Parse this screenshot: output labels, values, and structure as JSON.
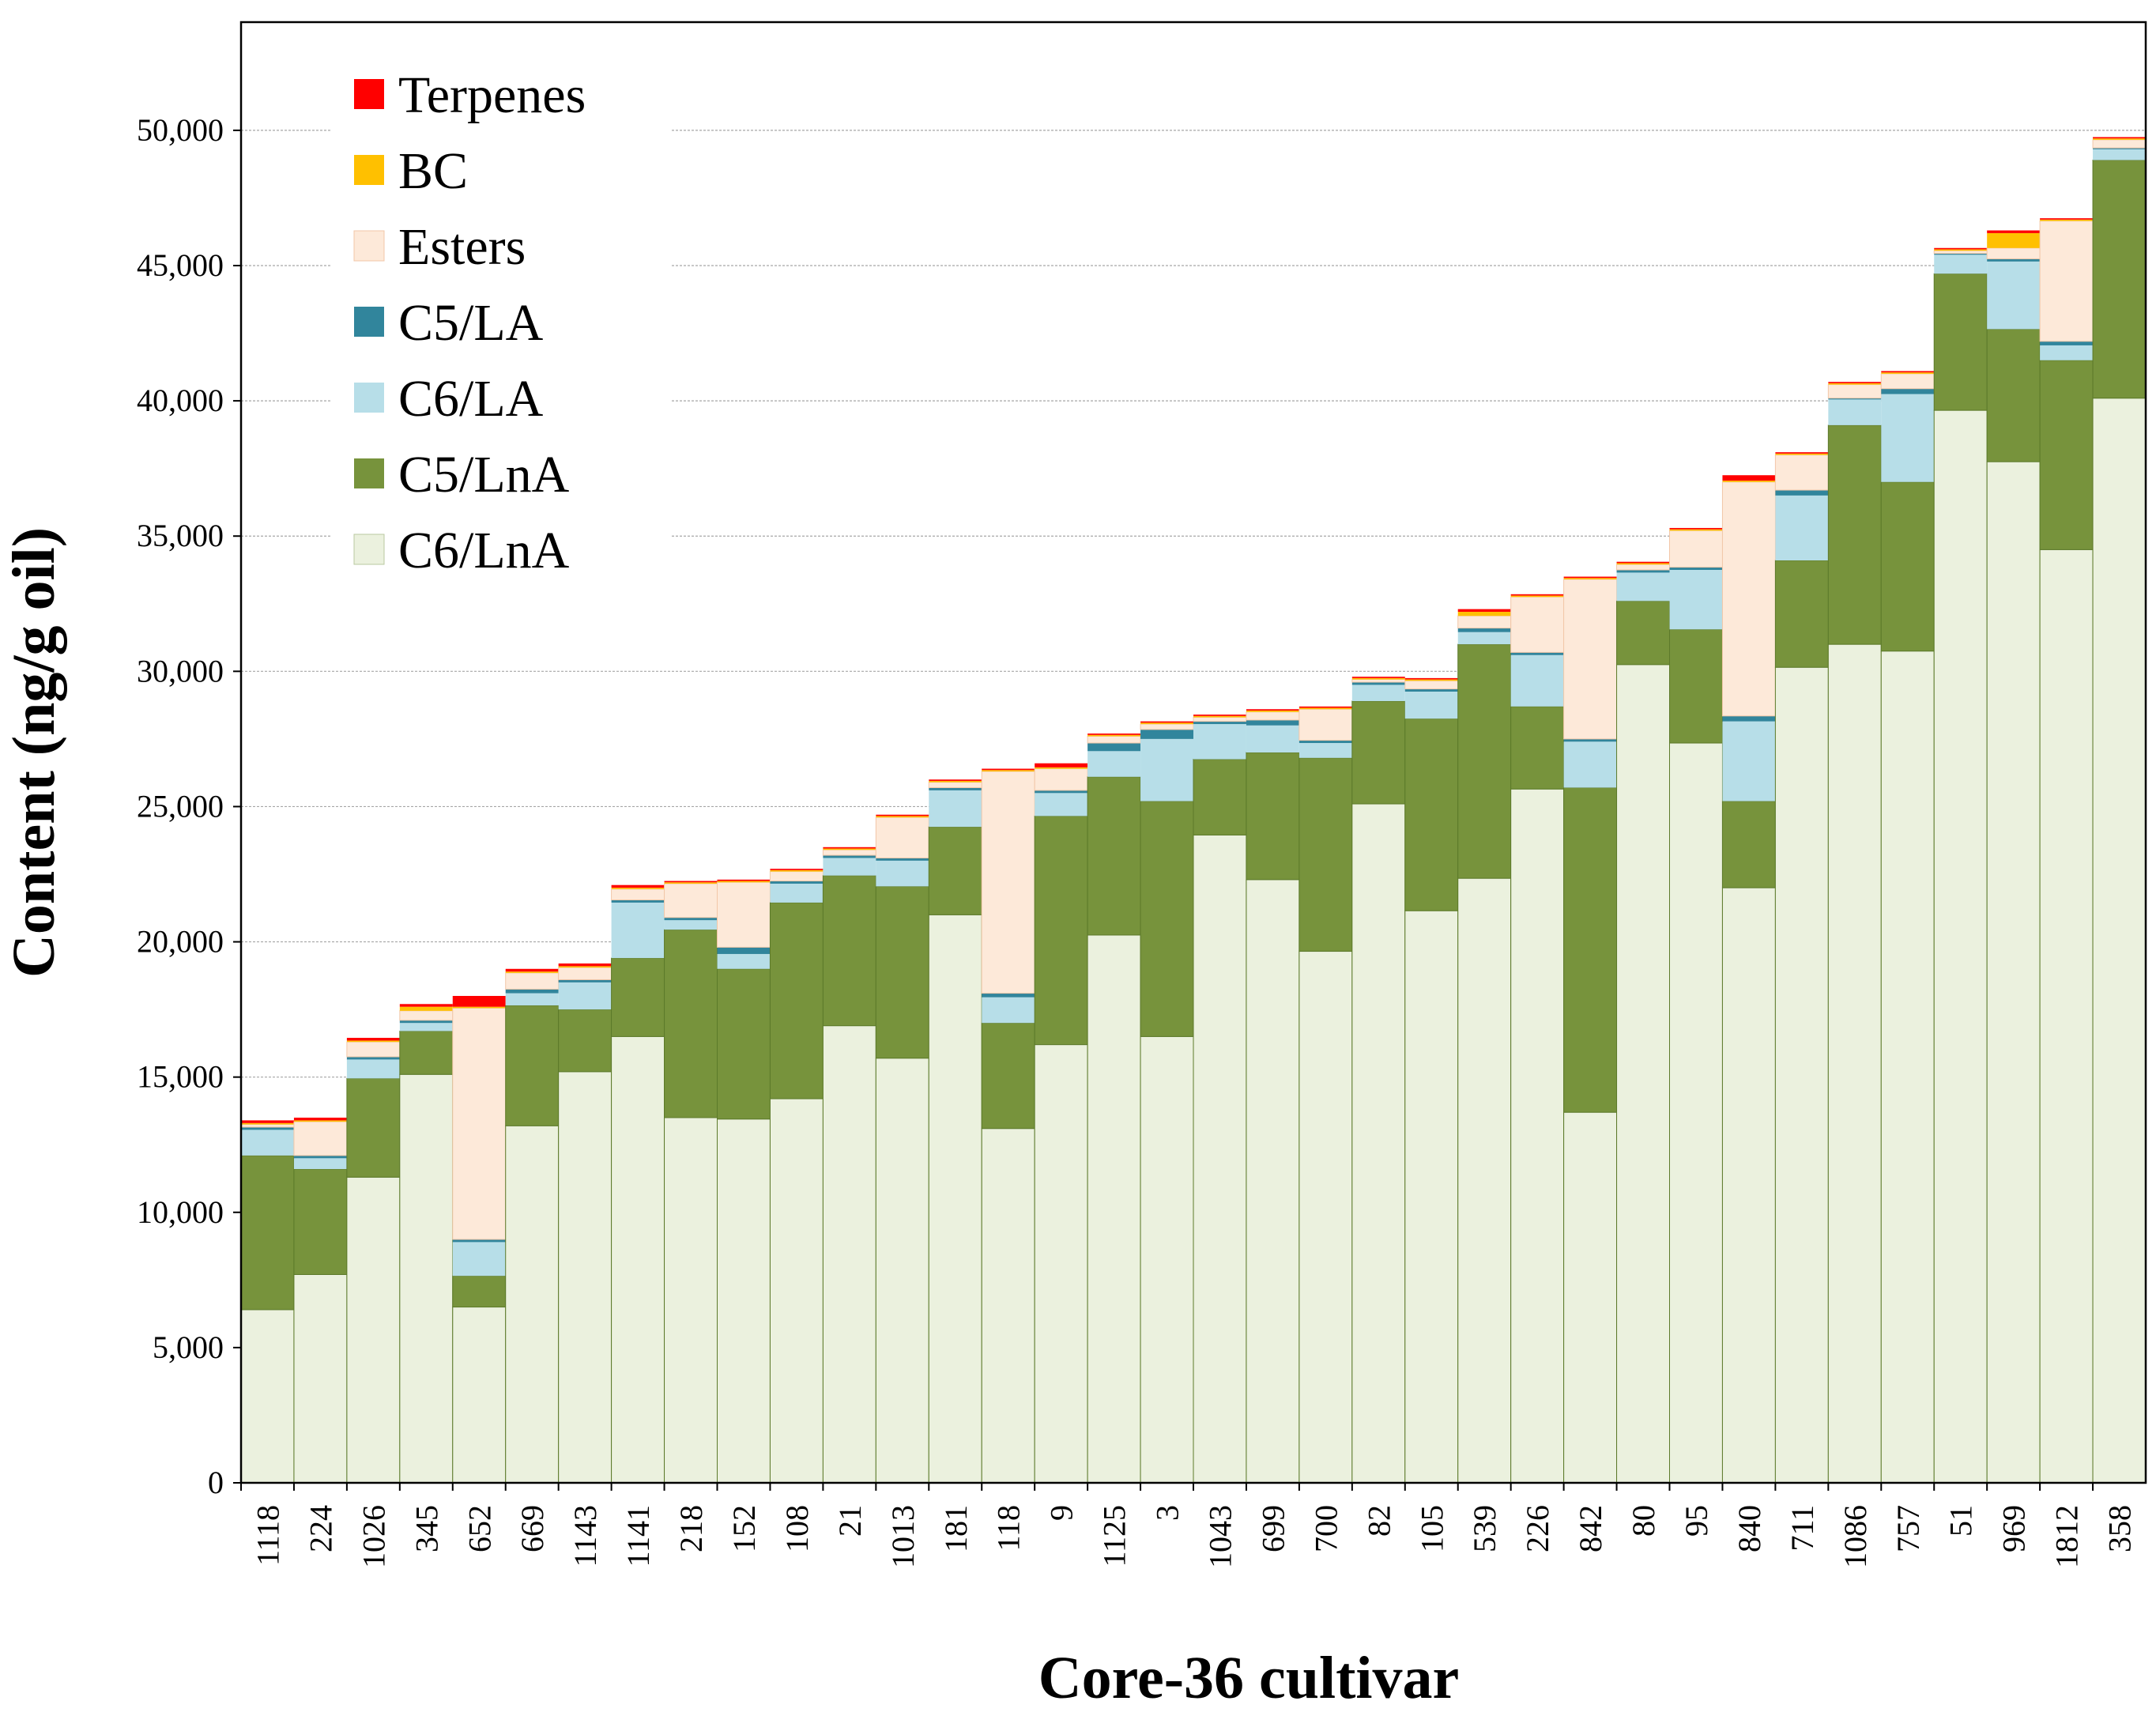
{
  "chart_data": {
    "type": "bar",
    "stacked": true,
    "title": "",
    "xlabel": "Core-36 cultivar",
    "ylabel": "Content (ng/g oil)",
    "ylim": [
      0,
      54000
    ],
    "yticks": [
      0,
      5000,
      10000,
      15000,
      20000,
      25000,
      30000,
      35000,
      40000,
      45000,
      50000
    ],
    "ytick_labels": [
      "0",
      "5,000",
      "10,000",
      "15,000",
      "20,000",
      "25,000",
      "30,000",
      "35,000",
      "40,000",
      "45,000",
      "50,000"
    ],
    "grid": true,
    "legend_position": "top-left",
    "categories": [
      "1118",
      "224",
      "1026",
      "345",
      "652",
      "669",
      "1143",
      "1141",
      "218",
      "152",
      "108",
      "21",
      "1013",
      "181",
      "118",
      "9",
      "1125",
      "3",
      "1043",
      "699",
      "700",
      "82",
      "105",
      "539",
      "226",
      "842",
      "80",
      "95",
      "840",
      "711",
      "1086",
      "757",
      "51",
      "969",
      "1812",
      "358"
    ],
    "series": [
      {
        "name": "C6/LnA",
        "color": "#ebf1de",
        "values": [
          6400,
          7700,
          11300,
          15100,
          6500,
          13200,
          15200,
          16500,
          13500,
          13450,
          14200,
          16900,
          15700,
          21000,
          13100,
          16200,
          20250,
          16500,
          23950,
          22300,
          19650,
          25100,
          21150,
          22350,
          25650,
          13700,
          30250,
          27350,
          22000,
          30150,
          31000,
          30750,
          39650,
          37750,
          34500,
          40100
        ]
      },
      {
        "name": "C5/LnA",
        "color": "#77933c",
        "values": [
          5700,
          3900,
          3650,
          1600,
          1150,
          4450,
          2300,
          2900,
          6950,
          5550,
          7250,
          5550,
          6350,
          3250,
          3900,
          8450,
          5850,
          8700,
          2800,
          4700,
          7150,
          3800,
          7100,
          8650,
          3050,
          12000,
          2350,
          4200,
          3200,
          3950,
          8100,
          6250,
          5050,
          4900,
          7000,
          8800
        ]
      },
      {
        "name": "C6/LA",
        "color": "#b7dee8",
        "values": [
          950,
          400,
          700,
          300,
          1250,
          450,
          1000,
          2050,
          350,
          550,
          700,
          650,
          950,
          1350,
          950,
          850,
          950,
          2300,
          1300,
          1000,
          550,
          600,
          1000,
          450,
          1900,
          1700,
          1050,
          2200,
          2950,
          2400,
          950,
          3250,
          700,
          2500,
          550,
          400
        ]
      },
      {
        "name": "C5/LA",
        "color": "#31859c",
        "values": [
          100,
          100,
          100,
          100,
          100,
          150,
          100,
          100,
          100,
          250,
          100,
          100,
          100,
          100,
          150,
          100,
          300,
          350,
          100,
          200,
          100,
          100,
          100,
          150,
          100,
          100,
          100,
          100,
          200,
          200,
          50,
          200,
          50,
          100,
          150,
          50
        ]
      },
      {
        "name": "Esters",
        "color": "#fde9d9",
        "values": [
          100,
          1250,
          550,
          350,
          8550,
          600,
          450,
          400,
          1250,
          2400,
          350,
          200,
          1500,
          200,
          8200,
          800,
          250,
          200,
          150,
          300,
          1150,
          100,
          300,
          450,
          2050,
          5900,
          200,
          1350,
          8650,
          1300,
          500,
          550,
          100,
          400,
          4450,
          300
        ]
      },
      {
        "name": "BC",
        "color": "#ffc000",
        "values": [
          50,
          50,
          50,
          150,
          50,
          50,
          50,
          50,
          50,
          50,
          50,
          50,
          50,
          50,
          50,
          50,
          50,
          50,
          50,
          50,
          50,
          50,
          50,
          150,
          50,
          50,
          50,
          50,
          50,
          50,
          50,
          50,
          50,
          550,
          50,
          50
        ]
      },
      {
        "name": "Terpenes",
        "color": "#ff0000",
        "values": [
          100,
          100,
          100,
          100,
          400,
          100,
          100,
          100,
          50,
          50,
          50,
          50,
          50,
          50,
          50,
          150,
          50,
          50,
          50,
          50,
          50,
          50,
          50,
          100,
          50,
          50,
          50,
          50,
          200,
          50,
          50,
          50,
          50,
          100,
          50,
          50
        ]
      }
    ]
  }
}
